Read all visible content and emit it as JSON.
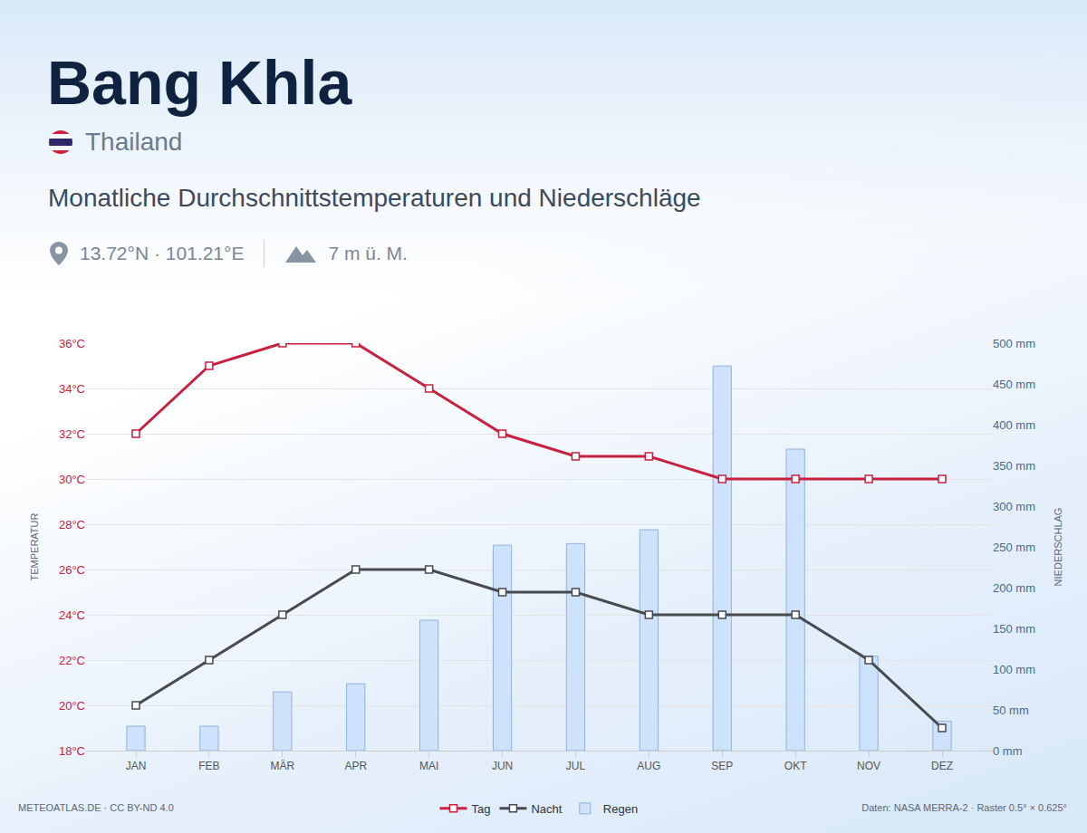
{
  "chart_data": {
    "type": "combo",
    "title": "Bang Khla",
    "country": "Thailand",
    "subtitle": "Monatliche Durchschnittstemperaturen und Niederschläge",
    "coordinates": "13.72°N · 101.21°E",
    "elevation": "7 m ü. M.",
    "credit": "METEOATLAS.DE · CC BY-ND 4.0",
    "source": "Daten: NASA MERRA-2 · Raster 0.5° × 0.625°",
    "ylabel": "TEMPERATUR",
    "y2label": "NIEDERSCHLAG",
    "categories": [
      "JAN",
      "FEB",
      "MÄR",
      "APR",
      "MAI",
      "JUN",
      "JUL",
      "AUG",
      "SEP",
      "OKT",
      "NOV",
      "DEZ"
    ],
    "series": [
      {
        "name": "Tag",
        "type": "line",
        "color": "#c8203f",
        "marker": "square",
        "line_style": "solid",
        "values": [
          32,
          35,
          36,
          36,
          34,
          32,
          31,
          31,
          30,
          30,
          30,
          30
        ]
      },
      {
        "name": "Nacht",
        "type": "line",
        "color": "#474a4f",
        "marker": "square",
        "line_style": "solid",
        "values": [
          20,
          22,
          24,
          26,
          26,
          25,
          25,
          24,
          24,
          24,
          22,
          19
        ]
      },
      {
        "name": "Regen",
        "type": "bar",
        "color": "#cfe2fb",
        "axis": "y2",
        "values": [
          30,
          30,
          72,
          82,
          160,
          252,
          254,
          271,
          472,
          370,
          116,
          36
        ]
      }
    ],
    "ylim": [
      18,
      36
    ],
    "yticks": [
      {
        "value": 18,
        "label": "18°C"
      },
      {
        "value": 20,
        "label": "20°C"
      },
      {
        "value": 22,
        "label": "22°C"
      },
      {
        "value": 24,
        "label": "24°C"
      },
      {
        "value": 26,
        "label": "26°C"
      },
      {
        "value": 28,
        "label": "28°C"
      },
      {
        "value": 30,
        "label": "30°C"
      },
      {
        "value": 32,
        "label": "32°C"
      },
      {
        "value": 34,
        "label": "34°C"
      },
      {
        "value": 36,
        "label": "36°C"
      }
    ],
    "y2lim": [
      0,
      500
    ],
    "y2ticks": [
      {
        "value": 0,
        "label": "0 mm"
      },
      {
        "value": 50,
        "label": "50 mm"
      },
      {
        "value": 100,
        "label": "100 mm"
      },
      {
        "value": 150,
        "label": "150 mm"
      },
      {
        "value": 200,
        "label": "200 mm"
      },
      {
        "value": 250,
        "label": "250 mm"
      },
      {
        "value": 300,
        "label": "300 mm"
      },
      {
        "value": 350,
        "label": "350 mm"
      },
      {
        "value": 400,
        "label": "400 mm"
      },
      {
        "value": 450,
        "label": "450 mm"
      },
      {
        "value": 500,
        "label": "500 mm"
      }
    ],
    "grid": true,
    "legend": "bottom"
  }
}
